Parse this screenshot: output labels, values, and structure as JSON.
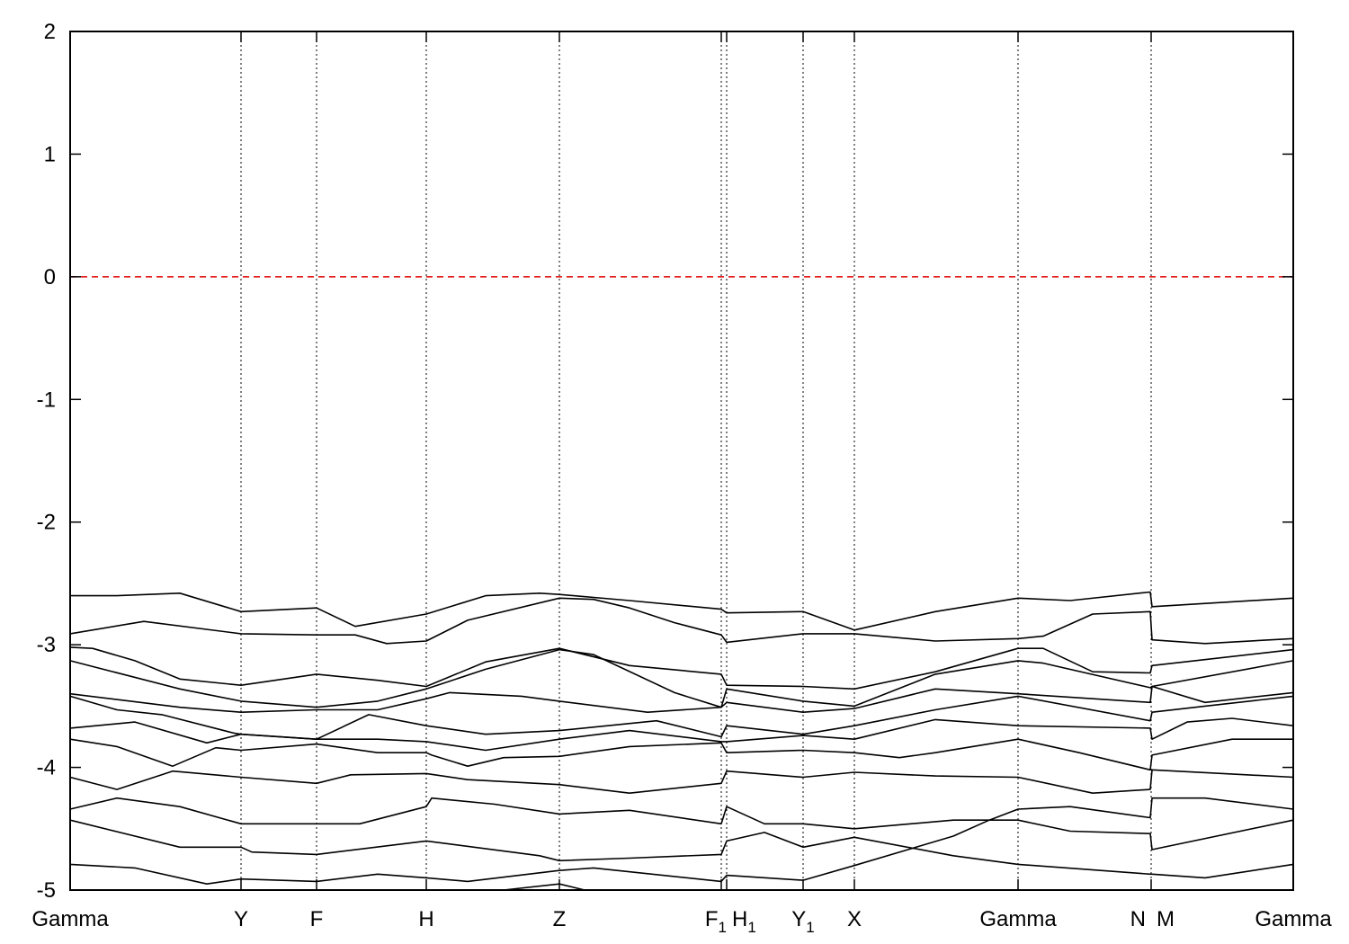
{
  "chart_data": {
    "type": "line",
    "title": "",
    "xlabel": "",
    "ylabel": "",
    "ylim": [
      -5,
      2
    ],
    "xlim": [
      0,
      1.36
    ],
    "yticks": [
      -5,
      -4,
      -3,
      -2,
      -1,
      0,
      1,
      2
    ],
    "grid": "vertical dotted lines at high-symmetry points",
    "fermi_level": {
      "value": 0,
      "color": "#e00000",
      "style": "dashed"
    },
    "band_color": "#000000",
    "kpoints": [
      {
        "label": "Gamma",
        "sub": "",
        "k": 0
      },
      {
        "label": "Y",
        "sub": "",
        "k": 0.19
      },
      {
        "label": "F",
        "sub": "",
        "k": 0.274
      },
      {
        "label": "H",
        "sub": "",
        "k": 0.396
      },
      {
        "label": "Z",
        "sub": "",
        "k": 0.544
      },
      {
        "label": "F",
        "sub": "1",
        "k": 0.724
      },
      {
        "label": "H",
        "sub": "1",
        "k": 0.73
      },
      {
        "label": "Y",
        "sub": "1",
        "k": 0.815
      },
      {
        "label": "X",
        "sub": "",
        "k": 0.872
      },
      {
        "label": "Gamma",
        "sub": "",
        "k": 1.054
      },
      {
        "label": "N",
        "sub": "",
        "k": 1.202
      },
      {
        "label": "M",
        "sub": "",
        "k": 1.202
      },
      {
        "label": "Gamma",
        "sub": "",
        "k": 1.36
      }
    ],
    "bands": [
      [
        [
          0,
          -2.6
        ],
        [
          0.052,
          -2.6
        ],
        [
          0.122,
          -2.58
        ],
        [
          0.19,
          -2.73
        ],
        [
          0.274,
          -2.7
        ],
        [
          0.317,
          -2.85
        ],
        [
          0.396,
          -2.75
        ],
        [
          0.462,
          -2.6
        ],
        [
          0.522,
          -2.58
        ],
        [
          0.544,
          -2.59
        ],
        [
          0.622,
          -2.64
        ],
        [
          0.724,
          -2.71
        ],
        [
          0.73,
          -2.74
        ],
        [
          0.815,
          -2.73
        ],
        [
          0.872,
          -2.88
        ],
        [
          0.962,
          -2.73
        ],
        [
          1.054,
          -2.62
        ],
        [
          1.112,
          -2.64
        ],
        [
          1.201,
          -2.57
        ],
        [
          1.203,
          -2.69
        ],
        [
          1.36,
          -2.62
        ]
      ],
      [
        [
          0,
          -2.91
        ],
        [
          0.082,
          -2.81
        ],
        [
          0.19,
          -2.91
        ],
        [
          0.274,
          -2.92
        ],
        [
          0.317,
          -2.92
        ],
        [
          0.352,
          -2.99
        ],
        [
          0.396,
          -2.97
        ],
        [
          0.442,
          -2.8
        ],
        [
          0.544,
          -2.62
        ],
        [
          0.582,
          -2.63
        ],
        [
          0.622,
          -2.7
        ],
        [
          0.672,
          -2.82
        ],
        [
          0.724,
          -2.92
        ],
        [
          0.73,
          -2.98
        ],
        [
          0.815,
          -2.91
        ],
        [
          0.872,
          -2.91
        ],
        [
          0.962,
          -2.97
        ],
        [
          1.054,
          -2.95
        ],
        [
          1.082,
          -2.93
        ],
        [
          1.137,
          -2.75
        ],
        [
          1.201,
          -2.73
        ],
        [
          1.203,
          -2.96
        ],
        [
          1.262,
          -2.99
        ],
        [
          1.36,
          -2.95
        ]
      ],
      [
        [
          0,
          -3.02
        ],
        [
          0.025,
          -3.03
        ],
        [
          0.072,
          -3.13
        ],
        [
          0.122,
          -3.28
        ],
        [
          0.19,
          -3.33
        ],
        [
          0.274,
          -3.24
        ],
        [
          0.342,
          -3.29
        ],
        [
          0.396,
          -3.34
        ],
        [
          0.462,
          -3.14
        ],
        [
          0.544,
          -3.03
        ],
        [
          0.622,
          -3.17
        ],
        [
          0.724,
          -3.24
        ],
        [
          0.73,
          -3.33
        ],
        [
          0.815,
          -3.34
        ],
        [
          0.872,
          -3.36
        ],
        [
          0.962,
          -3.22
        ],
        [
          1.054,
          -3.03
        ],
        [
          1.082,
          -3.03
        ],
        [
          1.137,
          -3.22
        ],
        [
          1.201,
          -3.23
        ],
        [
          1.203,
          -3.17
        ],
        [
          1.36,
          -3.04
        ]
      ],
      [
        [
          0,
          -3.13
        ],
        [
          0.122,
          -3.36
        ],
        [
          0.19,
          -3.46
        ],
        [
          0.274,
          -3.51
        ],
        [
          0.342,
          -3.46
        ],
        [
          0.396,
          -3.36
        ],
        [
          0.462,
          -3.2
        ],
        [
          0.544,
          -3.04
        ],
        [
          0.582,
          -3.08
        ],
        [
          0.672,
          -3.39
        ],
        [
          0.724,
          -3.51
        ],
        [
          0.73,
          -3.36
        ],
        [
          0.815,
          -3.46
        ],
        [
          0.872,
          -3.5
        ],
        [
          0.962,
          -3.24
        ],
        [
          1.054,
          -3.13
        ],
        [
          1.082,
          -3.15
        ],
        [
          1.201,
          -3.35
        ],
        [
          1.203,
          -3.34
        ],
        [
          1.36,
          -3.13
        ]
      ],
      [
        [
          0,
          -3.4
        ],
        [
          0.122,
          -3.51
        ],
        [
          0.19,
          -3.55
        ],
        [
          0.274,
          -3.53
        ],
        [
          0.342,
          -3.53
        ],
        [
          0.396,
          -3.44
        ],
        [
          0.422,
          -3.39
        ],
        [
          0.502,
          -3.42
        ],
        [
          0.544,
          -3.46
        ],
        [
          0.642,
          -3.55
        ],
        [
          0.724,
          -3.51
        ],
        [
          0.73,
          -3.47
        ],
        [
          0.815,
          -3.55
        ],
        [
          0.872,
          -3.52
        ],
        [
          0.962,
          -3.36
        ],
        [
          1.054,
          -3.4
        ],
        [
          1.201,
          -3.47
        ],
        [
          1.203,
          -3.34
        ],
        [
          1.262,
          -3.47
        ],
        [
          1.36,
          -3.39
        ]
      ],
      [
        [
          0,
          -3.42
        ],
        [
          0.052,
          -3.53
        ],
        [
          0.102,
          -3.57
        ],
        [
          0.182,
          -3.72
        ],
        [
          0.19,
          -3.73
        ],
        [
          0.274,
          -3.77
        ],
        [
          0.332,
          -3.57
        ],
        [
          0.396,
          -3.66
        ],
        [
          0.462,
          -3.73
        ],
        [
          0.544,
          -3.7
        ],
        [
          0.652,
          -3.62
        ],
        [
          0.724,
          -3.75
        ],
        [
          0.73,
          -3.66
        ],
        [
          0.815,
          -3.73
        ],
        [
          0.872,
          -3.66
        ],
        [
          0.962,
          -3.53
        ],
        [
          1.054,
          -3.42
        ],
        [
          1.201,
          -3.62
        ],
        [
          1.203,
          -3.55
        ],
        [
          1.262,
          -3.5
        ],
        [
          1.36,
          -3.42
        ]
      ],
      [
        [
          0,
          -3.68
        ],
        [
          0.072,
          -3.63
        ],
        [
          0.152,
          -3.8
        ],
        [
          0.19,
          -3.73
        ],
        [
          0.274,
          -3.77
        ],
        [
          0.342,
          -3.77
        ],
        [
          0.396,
          -3.79
        ],
        [
          0.462,
          -3.86
        ],
        [
          0.544,
          -3.77
        ],
        [
          0.622,
          -3.7
        ],
        [
          0.724,
          -3.79
        ],
        [
          0.73,
          -3.79
        ],
        [
          0.815,
          -3.74
        ],
        [
          0.872,
          -3.77
        ],
        [
          0.962,
          -3.61
        ],
        [
          1.054,
          -3.66
        ],
        [
          1.201,
          -3.68
        ],
        [
          1.203,
          -3.77
        ],
        [
          1.242,
          -3.63
        ],
        [
          1.292,
          -3.6
        ],
        [
          1.36,
          -3.66
        ]
      ],
      [
        [
          0,
          -3.77
        ],
        [
          0.052,
          -3.83
        ],
        [
          0.114,
          -3.99
        ],
        [
          0.162,
          -3.84
        ],
        [
          0.19,
          -3.86
        ],
        [
          0.274,
          -3.81
        ],
        [
          0.342,
          -3.88
        ],
        [
          0.396,
          -3.88
        ],
        [
          0.402,
          -3.9
        ],
        [
          0.442,
          -3.99
        ],
        [
          0.482,
          -3.92
        ],
        [
          0.544,
          -3.91
        ],
        [
          0.622,
          -3.83
        ],
        [
          0.724,
          -3.8
        ],
        [
          0.73,
          -3.88
        ],
        [
          0.815,
          -3.86
        ],
        [
          0.872,
          -3.88
        ],
        [
          0.922,
          -3.92
        ],
        [
          0.962,
          -3.88
        ],
        [
          1.054,
          -3.77
        ],
        [
          1.122,
          -3.88
        ],
        [
          1.201,
          -4.02
        ],
        [
          1.203,
          -3.9
        ],
        [
          1.292,
          -3.77
        ],
        [
          1.36,
          -3.77
        ]
      ],
      [
        [
          0,
          -4.08
        ],
        [
          0.052,
          -4.18
        ],
        [
          0.114,
          -4.03
        ],
        [
          0.19,
          -4.08
        ],
        [
          0.274,
          -4.13
        ],
        [
          0.312,
          -4.06
        ],
        [
          0.396,
          -4.05
        ],
        [
          0.442,
          -4.1
        ],
        [
          0.544,
          -4.14
        ],
        [
          0.622,
          -4.21
        ],
        [
          0.724,
          -4.13
        ],
        [
          0.73,
          -4.03
        ],
        [
          0.815,
          -4.08
        ],
        [
          0.872,
          -4.04
        ],
        [
          0.962,
          -4.07
        ],
        [
          1.054,
          -4.08
        ],
        [
          1.137,
          -4.21
        ],
        [
          1.201,
          -4.18
        ],
        [
          1.203,
          -4.02
        ],
        [
          1.36,
          -4.08
        ]
      ],
      [
        [
          0,
          -4.34
        ],
        [
          0.052,
          -4.25
        ],
        [
          0.122,
          -4.32
        ],
        [
          0.19,
          -4.46
        ],
        [
          0.274,
          -4.46
        ],
        [
          0.322,
          -4.46
        ],
        [
          0.396,
          -4.32
        ],
        [
          0.402,
          -4.25
        ],
        [
          0.472,
          -4.3
        ],
        [
          0.544,
          -4.38
        ],
        [
          0.622,
          -4.35
        ],
        [
          0.724,
          -4.46
        ],
        [
          0.73,
          -4.32
        ],
        [
          0.772,
          -4.46
        ],
        [
          0.815,
          -4.46
        ],
        [
          0.872,
          -4.5
        ],
        [
          0.982,
          -4.43
        ],
        [
          1.054,
          -4.43
        ],
        [
          1.112,
          -4.52
        ],
        [
          1.201,
          -4.54
        ],
        [
          1.203,
          -4.67
        ],
        [
          1.36,
          -4.43
        ]
      ],
      [
        [
          0,
          -4.43
        ],
        [
          0.122,
          -4.65
        ],
        [
          0.19,
          -4.65
        ],
        [
          0.202,
          -4.69
        ],
        [
          0.274,
          -4.71
        ],
        [
          0.396,
          -4.6
        ],
        [
          0.522,
          -4.72
        ],
        [
          0.544,
          -4.76
        ],
        [
          0.622,
          -4.74
        ],
        [
          0.724,
          -4.71
        ],
        [
          0.73,
          -4.6
        ],
        [
          0.772,
          -4.53
        ],
        [
          0.815,
          -4.65
        ],
        [
          0.872,
          -4.57
        ],
        [
          0.982,
          -4.72
        ],
        [
          1.054,
          -4.79
        ],
        [
          1.201,
          -4.87
        ],
        [
          1.203,
          -4.87
        ],
        [
          1.262,
          -4.9
        ],
        [
          1.36,
          -4.79
        ]
      ],
      [
        [
          0,
          -4.79
        ],
        [
          0.072,
          -4.82
        ],
        [
          0.152,
          -4.95
        ],
        [
          0.19,
          -4.91
        ],
        [
          0.274,
          -4.93
        ],
        [
          0.342,
          -4.87
        ],
        [
          0.396,
          -4.9
        ],
        [
          0.442,
          -4.93
        ],
        [
          0.544,
          -4.84
        ],
        [
          0.582,
          -4.82
        ],
        [
          0.724,
          -4.93
        ],
        [
          0.73,
          -4.88
        ],
        [
          0.815,
          -4.92
        ],
        [
          0.872,
          -4.8
        ],
        [
          0.982,
          -4.56
        ],
        [
          1.022,
          -4.43
        ],
        [
          1.054,
          -4.34
        ],
        [
          1.112,
          -4.32
        ],
        [
          1.201,
          -4.41
        ],
        [
          1.203,
          -4.25
        ],
        [
          1.262,
          -4.25
        ],
        [
          1.36,
          -4.34
        ]
      ],
      [
        [
          0.482,
          -5.0
        ],
        [
          0.544,
          -4.95
        ],
        [
          0.572,
          -5.0
        ]
      ]
    ]
  }
}
